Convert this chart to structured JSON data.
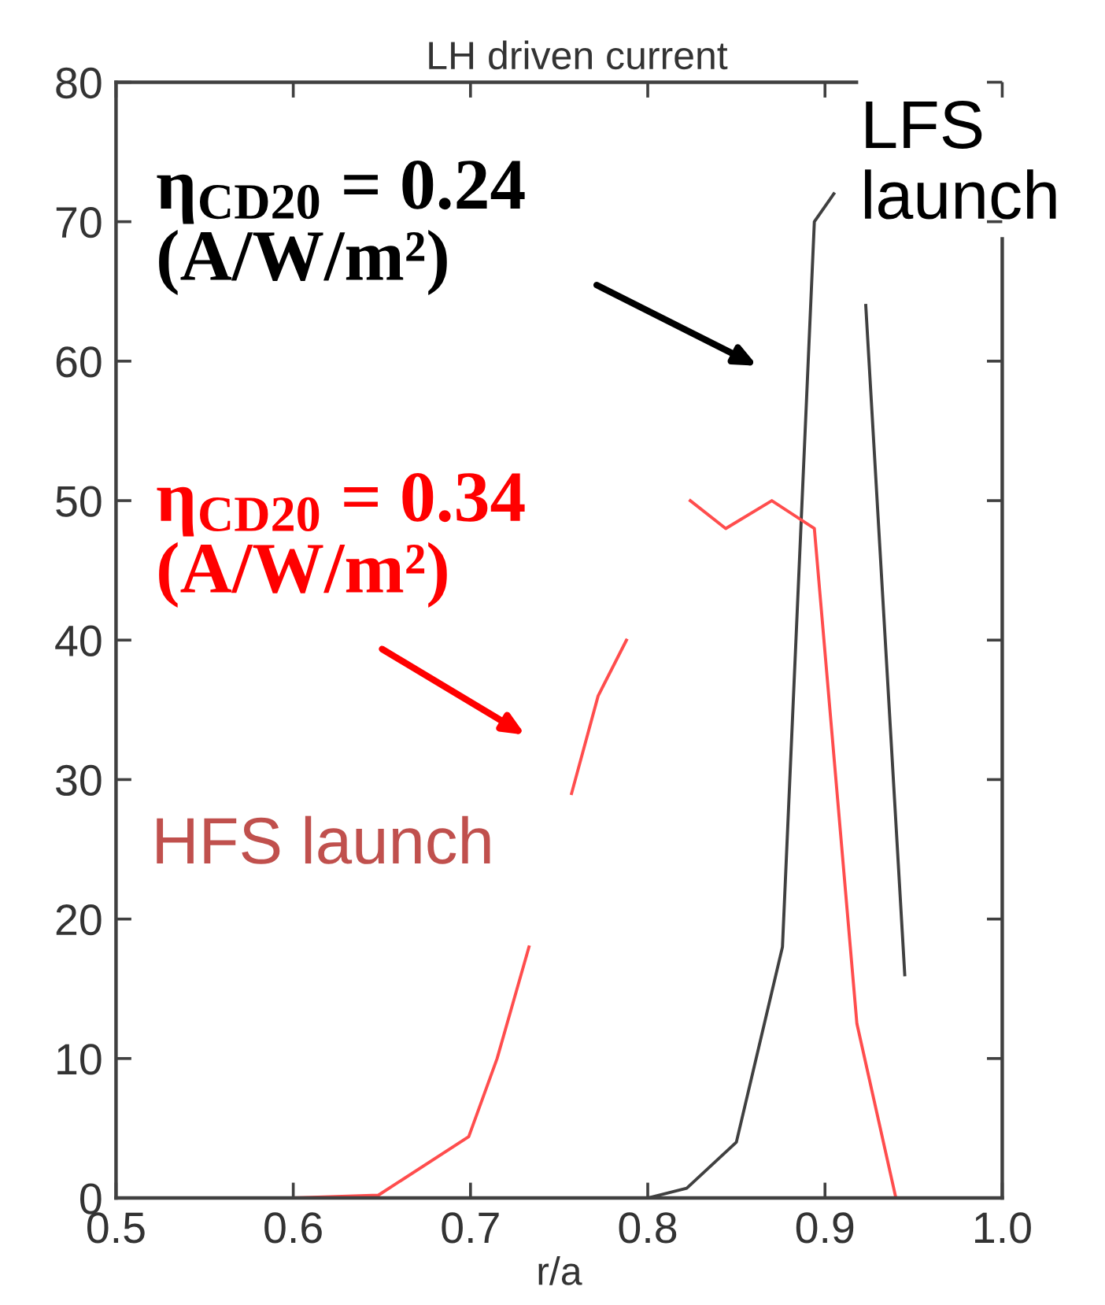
{
  "chart_data": {
    "type": "line",
    "title": "LH driven current",
    "xlabel": "r/a",
    "series": [
      {
        "name": "LFS launch",
        "color": "#404040",
        "x": [
          0.5,
          0.6,
          0.7,
          0.8,
          0.822,
          0.85,
          0.876,
          0.894,
          0.905,
          0.915,
          0.923,
          0.945
        ],
        "values": [
          0,
          0,
          0,
          0,
          0.7,
          4,
          18,
          70,
          72,
          null,
          64,
          16
        ]
      },
      {
        "name": "HFS launch",
        "color": "#ff4d4d",
        "x": [
          0.5,
          0.6,
          0.648,
          0.699,
          0.715,
          0.733,
          0.745,
          0.757,
          0.772,
          0.788,
          0.805,
          0.824,
          0.844,
          0.87,
          0.894,
          0.918,
          0.94
        ],
        "values": [
          0,
          0,
          0.2,
          4.4,
          10,
          18,
          null,
          29,
          36,
          40,
          null,
          50,
          48,
          50,
          48,
          12.5,
          0
        ]
      }
    ],
    "annotations": [
      "η$_{CD20}$ = 0.24\n(A/W/m²)",
      "η$_{CD20}$ = 0.34\n(A/W/m²)"
    ],
    "xlim": [
      0.5,
      1.0
    ],
    "ylim": [
      0,
      80
    ],
    "xticks": [
      0.5,
      0.6,
      0.7,
      0.8,
      0.9,
      {
        "value": 1.0,
        "label": "1.0"
      }
    ],
    "yticks": [
      0,
      10,
      20,
      30,
      40,
      50,
      60,
      70,
      80
    ],
    "grid": false,
    "legend": "top right",
    "marker": "none",
    "line_style": "solid"
  }
}
